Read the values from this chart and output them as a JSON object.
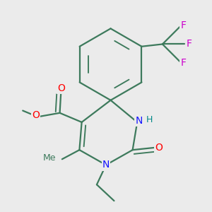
{
  "bg_color": "#ebebeb",
  "bond_color": "#3d7a5c",
  "bond_lw": 1.6,
  "atom_colors": {
    "N": "#1414ff",
    "O": "#ff0000",
    "F": "#cc00cc",
    "H": "#008888",
    "C": "#3d7a5c"
  },
  "fs": 10,
  "fs_small": 9
}
